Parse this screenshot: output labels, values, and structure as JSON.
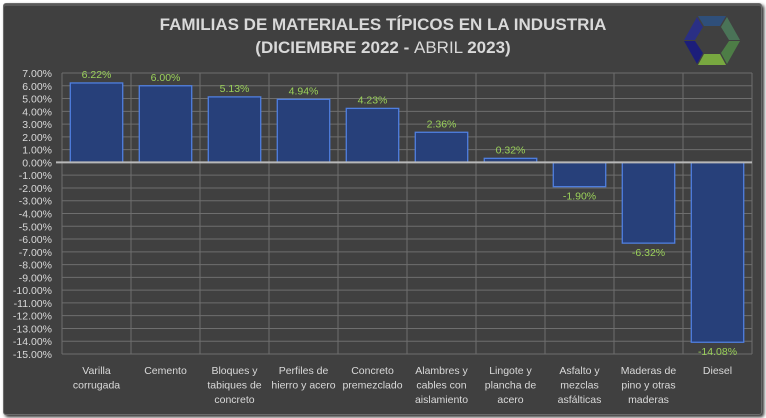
{
  "chart_data": {
    "type": "bar",
    "title_line1": "FAMILIAS DE MATERIALES TÍPICOS EN LA INDUSTRIA",
    "title_line2_parts": [
      "(DICIEMBRE 2022 - ",
      "ABRIL ",
      "2023)"
    ],
    "xlabel": "",
    "ylabel": "",
    "ylim": [
      -15,
      7
    ],
    "ytick_step": 1,
    "ytick_format": "percent_2dp",
    "grid": true,
    "legend": "none",
    "categories": [
      [
        "Varilla",
        "corrugada"
      ],
      [
        "Cemento"
      ],
      [
        "Bloques y",
        "tabiques de",
        "concreto"
      ],
      [
        "Perfiles de",
        "hierro y acero"
      ],
      [
        "Concreto",
        "premezclado"
      ],
      [
        "Alambres y",
        "cables con",
        "aislamiento"
      ],
      [
        "Lingote y",
        "plancha de",
        "acero"
      ],
      [
        "Asfalto y",
        "mezclas",
        "asfálticas"
      ],
      [
        "Maderas de",
        "pino y otras",
        "maderas"
      ],
      [
        "Diesel"
      ]
    ],
    "values": [
      6.22,
      6.0,
      5.13,
      4.94,
      4.23,
      2.36,
      0.32,
      -1.9,
      -6.32,
      -14.08
    ],
    "data_labels": [
      "6.22%",
      "6.00%",
      "5.13%",
      "4.94%",
      "4.23%",
      "2.36%",
      "0.32%",
      "-1.90%",
      "-6.32%",
      "-14.08%"
    ]
  },
  "colors": {
    "background": "#404040",
    "bar_fill": "#27407a",
    "bar_stroke": "#4f7fe0",
    "data_label": "#9bd25a",
    "axis_text": "#d9d9d9",
    "gridline": "#6e6e6e",
    "zero_line": "#b8b8b8"
  },
  "logo": {
    "icon": "hexagon-logo-icon"
  }
}
